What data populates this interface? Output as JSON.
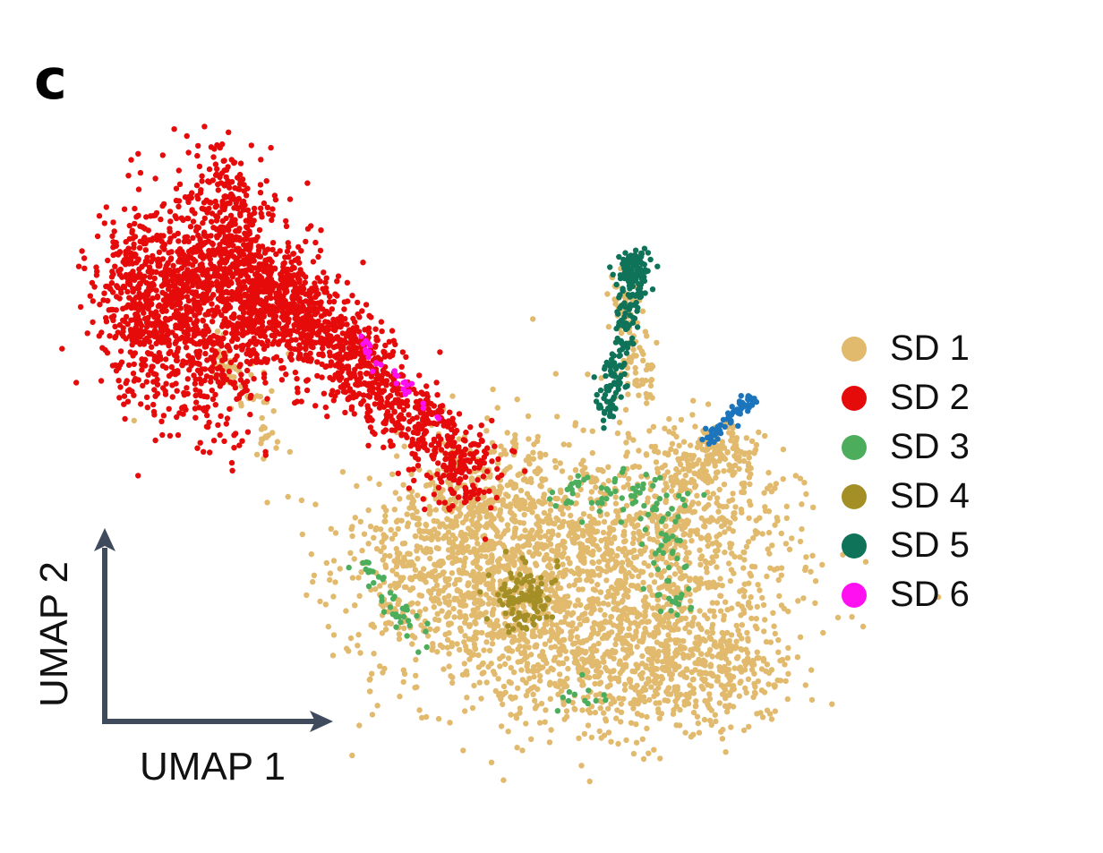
{
  "panel_label": "c",
  "chart_data": {
    "type": "scatter",
    "title": "",
    "xlabel": "UMAP 1",
    "ylabel": "UMAP 2",
    "ticks_shown": false,
    "grid": false,
    "legend_position": "right",
    "legend": [
      {
        "name": "SD 1",
        "color": "#E1BA6E"
      },
      {
        "name": "SD 2",
        "color": "#E60B0B"
      },
      {
        "name": "SD 3",
        "color": "#4CAE5D"
      },
      {
        "name": "SD 4",
        "color": "#A38F26"
      },
      {
        "name": "SD 5",
        "color": "#0E7359"
      },
      {
        "name": "SD 6",
        "color": "#FF10F0"
      }
    ],
    "unlabeled_cluster_color": "#1C75BC",
    "axis_color": "#3F4A5C"
  }
}
